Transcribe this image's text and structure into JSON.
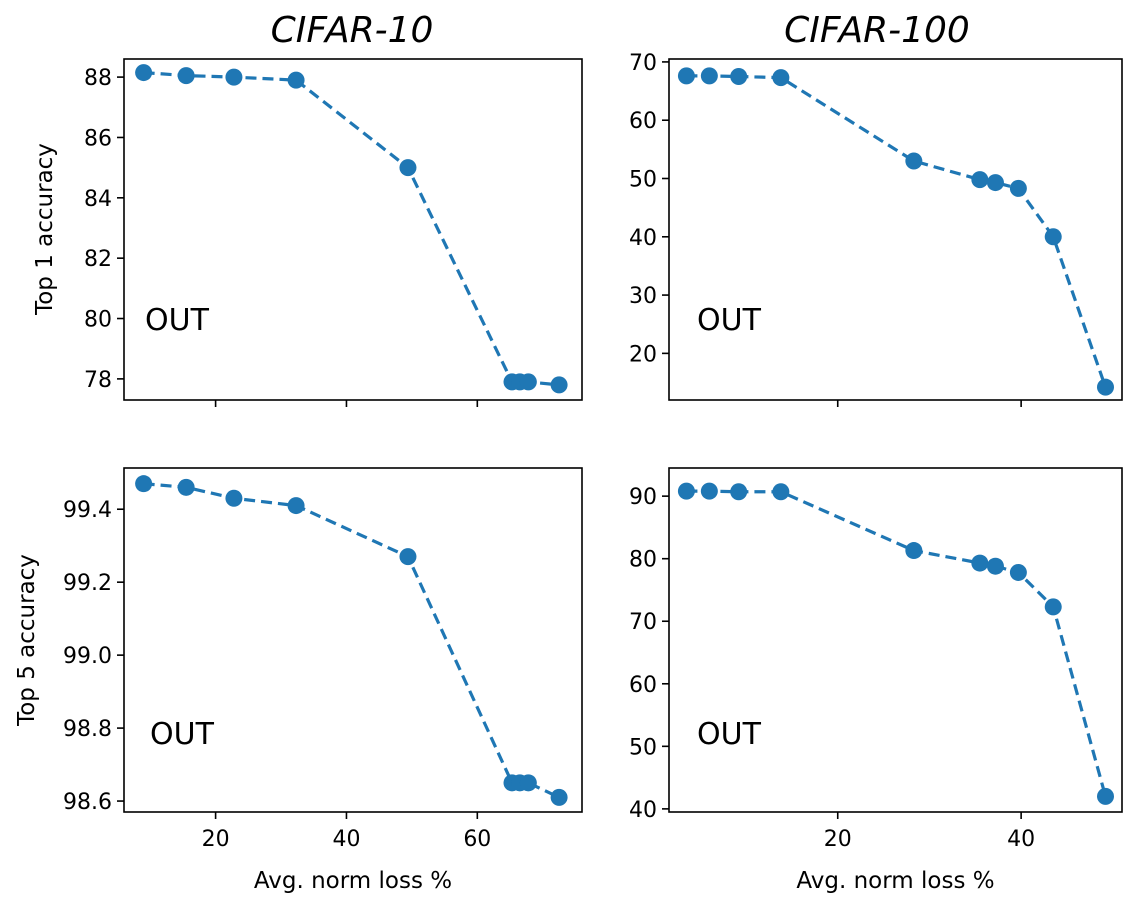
{
  "column_titles": [
    "CIFAR-10",
    "CIFAR-100"
  ],
  "colors": {
    "series": "#1f77b4",
    "axes": "#000000"
  },
  "chart_data": [
    {
      "type": "line",
      "panel": "top-left",
      "title": "CIFAR-10",
      "xlabel": "",
      "ylabel": "Top 1 accuracy",
      "annotation": "OUT",
      "xlim": [
        6,
        76
      ],
      "ylim": [
        77.3,
        88.6
      ],
      "xticks": [
        20,
        40,
        60
      ],
      "xtick_labels": [
        "",
        "",
        ""
      ],
      "yticks": [
        78,
        80,
        82,
        84,
        86,
        88
      ],
      "ytick_labels": [
        "78",
        "80",
        "82",
        "84",
        "86",
        "88"
      ],
      "line_style": "dashed",
      "marker": "circle",
      "x": [
        9,
        15.5,
        22.8,
        32.3,
        49.4,
        65.3,
        66.5,
        67.8,
        72.5
      ],
      "y": [
        88.15,
        88.05,
        88.0,
        87.9,
        85.0,
        77.9,
        77.9,
        77.9,
        77.8
      ]
    },
    {
      "type": "line",
      "panel": "top-right",
      "title": "CIFAR-100",
      "xlabel": "",
      "ylabel": "",
      "annotation": "OUT",
      "xlim": [
        1.6,
        51
      ],
      "ylim": [
        12,
        70.5
      ],
      "xticks": [
        20,
        40
      ],
      "xtick_labels": [
        "",
        ""
      ],
      "yticks": [
        20,
        30,
        40,
        50,
        60,
        70
      ],
      "ytick_labels": [
        "20",
        "30",
        "40",
        "50",
        "60",
        "70"
      ],
      "line_style": "dashed",
      "marker": "circle",
      "x": [
        3.5,
        6,
        9.2,
        13.8,
        28.3,
        35.5,
        37.2,
        39.7,
        43.5,
        49.2
      ],
      "y": [
        67.6,
        67.6,
        67.5,
        67.3,
        53.0,
        49.8,
        49.3,
        48.3,
        40.0,
        14.2
      ]
    },
    {
      "type": "line",
      "panel": "bottom-left",
      "title": "",
      "xlabel": "Avg. norm loss %",
      "ylabel": "Top 5 accuracy",
      "annotation": "OUT",
      "xlim": [
        6,
        76
      ],
      "ylim": [
        98.57,
        99.513
      ],
      "xticks": [
        20,
        40,
        60
      ],
      "xtick_labels": [
        "20",
        "40",
        "60"
      ],
      "yticks": [
        98.6,
        98.8,
        99.0,
        99.2,
        99.4
      ],
      "ytick_labels": [
        "98.6",
        "98.8",
        "99.0",
        "99.2",
        "99.4"
      ],
      "line_style": "dashed",
      "marker": "circle",
      "x": [
        9,
        15.5,
        22.8,
        32.3,
        49.4,
        65.3,
        66.5,
        67.8,
        72.5
      ],
      "y": [
        99.47,
        99.46,
        99.43,
        99.41,
        99.27,
        98.65,
        98.65,
        98.65,
        98.61
      ]
    },
    {
      "type": "line",
      "panel": "bottom-right",
      "title": "",
      "xlabel": "Avg. norm loss %",
      "ylabel": "",
      "annotation": "OUT",
      "xlim": [
        1.6,
        51
      ],
      "ylim": [
        39.5,
        94.5
      ],
      "xticks": [
        20,
        40
      ],
      "xtick_labels": [
        "20",
        "40"
      ],
      "yticks": [
        40,
        50,
        60,
        70,
        80,
        90
      ],
      "ytick_labels": [
        "40",
        "50",
        "60",
        "70",
        "80",
        "90"
      ],
      "line_style": "dashed",
      "marker": "circle",
      "x": [
        3.5,
        6,
        9.2,
        13.8,
        28.3,
        35.5,
        37.2,
        39.7,
        43.5,
        49.2
      ],
      "y": [
        90.8,
        90.8,
        90.7,
        90.7,
        81.3,
        79.3,
        78.8,
        77.8,
        72.3,
        42.0
      ]
    }
  ]
}
